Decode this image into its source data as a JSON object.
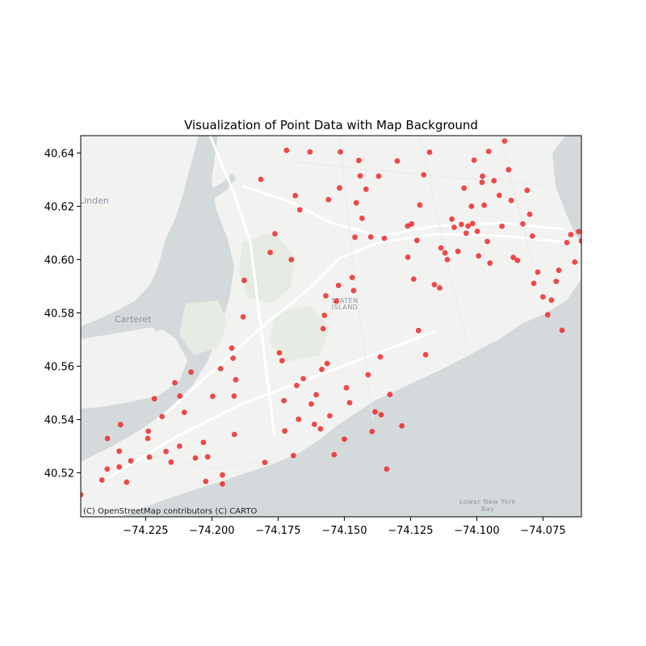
{
  "chart_data": {
    "type": "scatter",
    "title": "Visualization of Point Data with Map Background",
    "xlabel": "",
    "ylabel": "",
    "xlim": [
      -74.2495,
      -74.0605
    ],
    "ylim": [
      40.5035,
      40.6465
    ],
    "x_ticks": [
      -74.225,
      -74.2,
      -74.175,
      -74.15,
      -74.125,
      -74.1,
      -74.075
    ],
    "x_tick_labels": [
      "−74.225",
      "−74.200",
      "−74.175",
      "−74.150",
      "−74.125",
      "−74.100",
      "−74.075"
    ],
    "y_ticks": [
      40.52,
      40.54,
      40.56,
      40.58,
      40.6,
      40.62,
      40.64
    ],
    "y_tick_labels": [
      "40.52",
      "40.54",
      "40.56",
      "40.58",
      "40.60",
      "40.62",
      "40.64"
    ],
    "point_color": "#ee2222",
    "grid": false,
    "attribution": "(C) OpenStreetMap contributors (C) CARTO",
    "map_labels": {
      "linden": "Linden",
      "carteret": "Carteret",
      "staten_island_1": "STATEN",
      "staten_island_2": "ISLAND",
      "bay_1": "Lower New York",
      "bay_2": "Bay"
    },
    "points": [
      [
        -74.2495,
        40.5118
      ],
      [
        -74.2415,
        40.5173
      ],
      [
        -74.2395,
        40.5214
      ],
      [
        -74.235,
        40.5222
      ],
      [
        -74.2322,
        40.5165
      ],
      [
        -74.2306,
        40.5245
      ],
      [
        -74.235,
        40.5281
      ],
      [
        -74.2394,
        40.5329
      ],
      [
        -74.2345,
        40.5381
      ],
      [
        -74.2242,
        40.5329
      ],
      [
        -74.224,
        40.5356
      ],
      [
        -74.2236,
        40.5259
      ],
      [
        -74.2217,
        40.5478
      ],
      [
        -74.2188,
        40.5411
      ],
      [
        -74.2173,
        40.528
      ],
      [
        -74.2154,
        40.524
      ],
      [
        -74.214,
        40.5538
      ],
      [
        -74.2122,
        40.53
      ],
      [
        -74.2121,
        40.5488
      ],
      [
        -74.2104,
        40.5427
      ],
      [
        -74.2079,
        40.5578
      ],
      [
        -74.2062,
        40.5256
      ],
      [
        -74.2032,
        40.5314
      ],
      [
        -74.2023,
        40.5168
      ],
      [
        -74.2016,
        40.526
      ],
      [
        -74.1997,
        40.5487
      ],
      [
        -74.1967,
        40.5591
      ],
      [
        -74.196,
        40.5158
      ],
      [
        -74.196,
        40.5192
      ],
      [
        -74.1925,
        40.5668
      ],
      [
        -74.192,
        40.563
      ],
      [
        -74.1916,
        40.5488
      ],
      [
        -74.191,
        40.5549
      ],
      [
        -74.1915,
        40.5344
      ],
      [
        -74.1882,
        40.5785
      ],
      [
        -74.1878,
        40.5922
      ],
      [
        -74.1815,
        40.6301
      ],
      [
        -74.18,
        40.5239
      ],
      [
        -74.178,
        40.6027
      ],
      [
        -74.1762,
        40.6097
      ],
      [
        -74.1745,
        40.565
      ],
      [
        -74.1735,
        40.5621
      ],
      [
        -74.1728,
        40.5471
      ],
      [
        -74.1725,
        40.5357
      ],
      [
        -74.1718,
        40.641
      ],
      [
        -74.17,
        40.6
      ],
      [
        -74.1692,
        40.5265
      ],
      [
        -74.1685,
        40.624
      ],
      [
        -74.168,
        40.5528
      ],
      [
        -74.1673,
        40.5401
      ],
      [
        -74.1668,
        40.6187
      ],
      [
        -74.1655,
        40.5553
      ],
      [
        -74.163,
        40.6404
      ],
      [
        -74.1625,
        40.5458
      ],
      [
        -74.1613,
        40.5382
      ],
      [
        -74.1606,
        40.5493
      ],
      [
        -74.159,
        40.5365
      ],
      [
        -74.1585,
        40.5588
      ],
      [
        -74.158,
        40.5741
      ],
      [
        -74.1575,
        40.5791
      ],
      [
        -74.157,
        40.5864
      ],
      [
        -74.1565,
        40.561
      ],
      [
        -74.156,
        40.6225
      ],
      [
        -74.1555,
        40.5414
      ],
      [
        -74.1538,
        40.5268
      ],
      [
        -74.153,
        40.5844
      ],
      [
        -74.1522,
        40.5903
      ],
      [
        -74.1518,
        40.6269
      ],
      [
        -74.1515,
        40.6404
      ],
      [
        -74.15,
        40.5326
      ],
      [
        -74.1492,
        40.5519
      ],
      [
        -74.148,
        40.5463
      ],
      [
        -74.147,
        40.5933
      ],
      [
        -74.1465,
        40.5884
      ],
      [
        -74.146,
        40.6084
      ],
      [
        -74.1455,
        40.6213
      ],
      [
        -74.1445,
        40.6372
      ],
      [
        -74.144,
        40.6314
      ],
      [
        -74.1433,
        40.6155
      ],
      [
        -74.1418,
        40.6264
      ],
      [
        -74.141,
        40.5568
      ],
      [
        -74.14,
        40.6085
      ],
      [
        -74.1395,
        40.5355
      ],
      [
        -74.1384,
        40.5429
      ],
      [
        -74.137,
        40.6313
      ],
      [
        -74.1364,
        40.5635
      ],
      [
        -74.1361,
        40.5418
      ],
      [
        -74.1349,
        40.608
      ],
      [
        -74.134,
        40.5214
      ],
      [
        -74.1328,
        40.5494
      ],
      [
        -74.13,
        40.637
      ],
      [
        -74.1283,
        40.5376
      ],
      [
        -74.1261,
        40.6126
      ],
      [
        -74.126,
        40.6009
      ],
      [
        -74.1246,
        40.6134
      ],
      [
        -74.1238,
        40.5927
      ],
      [
        -74.1226,
        40.6072
      ],
      [
        -74.122,
        40.5734
      ],
      [
        -74.1215,
        40.6205
      ],
      [
        -74.12,
        40.6318
      ],
      [
        -74.1193,
        40.5643
      ],
      [
        -74.1178,
        40.6403
      ],
      [
        -74.116,
        40.5906
      ],
      [
        -74.114,
        40.5894
      ],
      [
        -74.1135,
        40.6044
      ],
      [
        -74.112,
        40.6025
      ],
      [
        -74.1111,
        40.6
      ],
      [
        -74.1094,
        40.6152
      ],
      [
        -74.1085,
        40.6121
      ],
      [
        -74.1071,
        40.6031
      ],
      [
        -74.1058,
        40.6132
      ],
      [
        -74.1048,
        40.6268
      ],
      [
        -74.104,
        40.6099
      ],
      [
        -74.1033,
        40.6126
      ],
      [
        -74.102,
        40.62
      ],
      [
        -74.1016,
        40.6135
      ],
      [
        -74.101,
        40.6373
      ],
      [
        -74.0998,
        40.6106
      ],
      [
        -74.0993,
        40.6014
      ],
      [
        -74.098,
        40.629
      ],
      [
        -74.0978,
        40.6313
      ],
      [
        -74.0972,
        40.6204
      ],
      [
        -74.096,
        40.6068
      ],
      [
        -74.0955,
        40.6406
      ],
      [
        -74.095,
        40.5987
      ],
      [
        -74.0935,
        40.6296
      ],
      [
        -74.0915,
        40.6241
      ],
      [
        -74.0905,
        40.6125
      ],
      [
        -74.0895,
        40.6445
      ],
      [
        -74.088,
        40.6337
      ],
      [
        -74.087,
        40.6222
      ],
      [
        -74.0862,
        40.6008
      ],
      [
        -74.0846,
        40.5997
      ],
      [
        -74.0826,
        40.6134
      ],
      [
        -74.081,
        40.626
      ],
      [
        -74.08,
        40.617
      ],
      [
        -74.079,
        40.6088
      ],
      [
        -74.0785,
        40.5911
      ],
      [
        -74.077,
        40.5953
      ],
      [
        -74.075,
        40.586
      ],
      [
        -74.0732,
        40.5793
      ],
      [
        -74.0718,
        40.5848
      ],
      [
        -74.07,
        40.5918
      ],
      [
        -74.069,
        40.596
      ],
      [
        -74.0678,
        40.5735
      ],
      [
        -74.066,
        40.6064
      ],
      [
        -74.0645,
        40.6094
      ],
      [
        -74.063,
        40.5991
      ],
      [
        -74.0615,
        40.6105
      ],
      [
        -74.0605,
        40.607
      ]
    ]
  }
}
